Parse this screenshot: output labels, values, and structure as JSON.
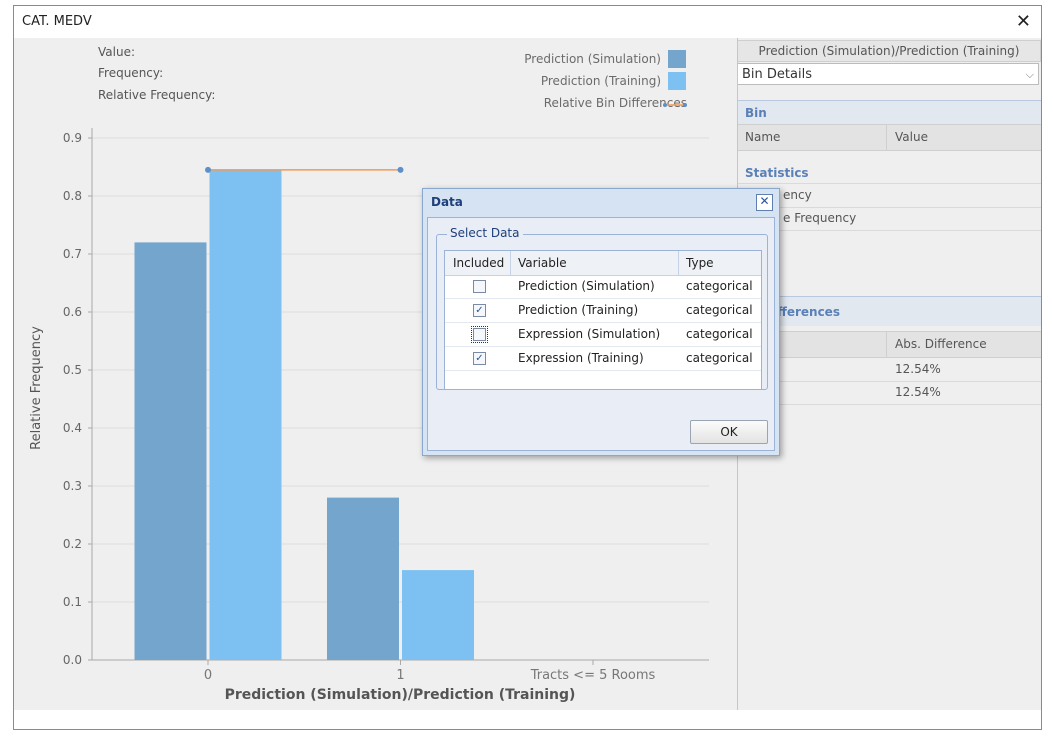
{
  "window": {
    "title": "CAT. MEDV",
    "close_glyph": "✕"
  },
  "info": {
    "value_label": "Value:",
    "frequency_label": "Frequency:",
    "relative_frequency_label": "Relative Frequency:"
  },
  "legend": [
    {
      "label": "Prediction (Simulation)",
      "color": "#73a5cd"
    },
    {
      "label": "Prediction (Training)",
      "color": "#7cc1f2"
    },
    {
      "label": "Relative Bin Differences",
      "color": "#f09a5a"
    }
  ],
  "chart_data": {
    "type": "bar",
    "categories": [
      "0",
      "1",
      "Tracts <= 5 Rooms"
    ],
    "series": [
      {
        "name": "Prediction (Simulation)",
        "values": [
          0.72,
          0.28,
          0
        ]
      },
      {
        "name": "Prediction (Training)",
        "values": [
          0.845,
          0.155,
          0
        ]
      }
    ],
    "line": {
      "name": "Relative Bin Differences",
      "points": [
        [
          0,
          0.845
        ],
        [
          1,
          0.845
        ]
      ]
    },
    "xlabel": "Prediction (Simulation)/Prediction (Training)",
    "ylabel": "Relative Frequency",
    "ylim": [
      0,
      0.9
    ],
    "yticks": [
      "0.0",
      "0.1",
      "0.2",
      "0.3",
      "0.4",
      "0.5",
      "0.6",
      "0.7",
      "0.8",
      "0.9"
    ],
    "grid": true,
    "legend_position": "top-right"
  },
  "right_panel": {
    "header": "Prediction (Simulation)/Prediction (Training)",
    "select_value": "Bin Details",
    "bin_section": "Bin",
    "bin_cols": [
      "Name",
      "Value"
    ],
    "statistics_section": "Statistics",
    "stat_rows": [
      "ency",
      "e Frequency"
    ],
    "diff_section": "ifferences",
    "diff_col": "Abs. Difference",
    "diff_values": [
      "12.54%",
      "12.54%"
    ]
  },
  "dialog": {
    "title": "Data",
    "close_glyph": "✕",
    "group_label": "Select Data",
    "columns": [
      "Included",
      "Variable",
      "Type"
    ],
    "rows": [
      {
        "checked": false,
        "variable": "Prediction (Simulation)",
        "type": "categorical"
      },
      {
        "checked": true,
        "variable": "Prediction (Training)",
        "type": "categorical"
      },
      {
        "checked": false,
        "variable": "Expression (Simulation)",
        "type": "categorical"
      },
      {
        "checked": true,
        "variable": "Expression (Training)",
        "type": "categorical"
      }
    ],
    "ok_label": "OK"
  }
}
